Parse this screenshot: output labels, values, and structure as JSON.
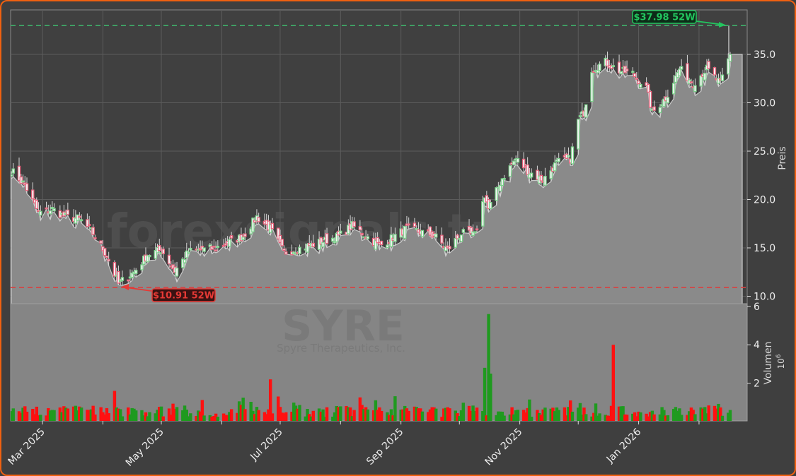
{
  "chart_data": {
    "type": "candlestick",
    "ticker": "SYRE",
    "company": "Spyre Therapeutics, Inc.",
    "watermark": "forexsignals.trade",
    "panels": [
      {
        "name": "price",
        "ylabel": "Preis",
        "yticks": [
          "10.0",
          "15.0",
          "20.0",
          "25.0",
          "30.0",
          "35.0"
        ],
        "ylim": [
          9.3,
          39.4
        ]
      },
      {
        "name": "volume",
        "ylabel": "Volumen",
        "yunit": "10^6",
        "yticks": [
          "2",
          "4",
          "6"
        ],
        "ylim": [
          0,
          6.2
        ]
      }
    ],
    "xticks": [
      "Mar 2025",
      "May 2025",
      "Jul 2025",
      "Sep 2025",
      "Nov 2025",
      "Jan 2026"
    ],
    "annotations": {
      "high_52w": {
        "label": "$37.98 52W",
        "value": 37.98,
        "color": "#22c55e"
      },
      "low_52w": {
        "label": "$10.91 52W",
        "value": 10.91,
        "color": "#ef4444"
      }
    },
    "close_series_approx": [
      {
        "date": "2025-02-13",
        "close": 23.0
      },
      {
        "date": "2025-02-20",
        "close": 21.5
      },
      {
        "date": "2025-02-27",
        "close": 18.6
      },
      {
        "date": "2025-03-06",
        "close": 19.0
      },
      {
        "date": "2025-03-13",
        "close": 18.2
      },
      {
        "date": "2025-03-20",
        "close": 18.0
      },
      {
        "date": "2025-03-27",
        "close": 16.5
      },
      {
        "date": "2025-04-03",
        "close": 14.2
      },
      {
        "date": "2025-04-09",
        "close": 11.3
      },
      {
        "date": "2025-04-17",
        "close": 12.5
      },
      {
        "date": "2025-04-24",
        "close": 14.3
      },
      {
        "date": "2025-05-01",
        "close": 14.8
      },
      {
        "date": "2025-05-08",
        "close": 12.6
      },
      {
        "date": "2025-05-15",
        "close": 14.6
      },
      {
        "date": "2025-05-29",
        "close": 15.0
      },
      {
        "date": "2025-06-12",
        "close": 16.2
      },
      {
        "date": "2025-06-19",
        "close": 18.2
      },
      {
        "date": "2025-06-26",
        "close": 17.0
      },
      {
        "date": "2025-07-03",
        "close": 14.5
      },
      {
        "date": "2025-07-17",
        "close": 15.3
      },
      {
        "date": "2025-07-31",
        "close": 16.2
      },
      {
        "date": "2025-08-07",
        "close": 17.3
      },
      {
        "date": "2025-08-21",
        "close": 15.2
      },
      {
        "date": "2025-09-04",
        "close": 17.0
      },
      {
        "date": "2025-09-18",
        "close": 16.3
      },
      {
        "date": "2025-09-25",
        "close": 14.8
      },
      {
        "date": "2025-10-02",
        "close": 16.5
      },
      {
        "date": "2025-10-09",
        "close": 16.3
      },
      {
        "date": "2025-10-14",
        "close": 20.5
      },
      {
        "date": "2025-10-16",
        "close": 19.0
      },
      {
        "date": "2025-10-23",
        "close": 22.2
      },
      {
        "date": "2025-10-30",
        "close": 24.2
      },
      {
        "date": "2025-11-06",
        "close": 22.8
      },
      {
        "date": "2025-11-13",
        "close": 22.0
      },
      {
        "date": "2025-11-20",
        "close": 23.8
      },
      {
        "date": "2025-11-27",
        "close": 24.2
      },
      {
        "date": "2025-12-01",
        "close": 28.2
      },
      {
        "date": "2025-12-04",
        "close": 29.0
      },
      {
        "date": "2025-12-08",
        "close": 33.5
      },
      {
        "date": "2025-12-15",
        "close": 34.2
      },
      {
        "date": "2025-12-22",
        "close": 33.3
      },
      {
        "date": "2025-12-29",
        "close": 33.0
      },
      {
        "date": "2026-01-05",
        "close": 31.5
      },
      {
        "date": "2026-01-08",
        "close": 29.0
      },
      {
        "date": "2026-01-15",
        "close": 30.5
      },
      {
        "date": "2026-01-22",
        "close": 33.5
      },
      {
        "date": "2026-01-29",
        "close": 32.0
      },
      {
        "date": "2026-02-05",
        "close": 33.5
      },
      {
        "date": "2026-02-12",
        "close": 32.0
      },
      {
        "date": "2026-02-17",
        "close": 35.0
      }
    ],
    "volume_millions_notable": [
      {
        "date": "2025-04-07",
        "value": 1.6,
        "direction": "down"
      },
      {
        "date": "2025-06-26",
        "value": 2.2,
        "direction": "down"
      },
      {
        "date": "2025-10-14",
        "value": 2.8,
        "direction": "up"
      },
      {
        "date": "2025-10-16",
        "value": 5.6,
        "direction": "up"
      },
      {
        "date": "2025-10-17",
        "value": 2.5,
        "direction": "up"
      },
      {
        "date": "2025-12-19",
        "value": 4.0,
        "direction": "down"
      }
    ],
    "legend": null,
    "grid": true
  }
}
